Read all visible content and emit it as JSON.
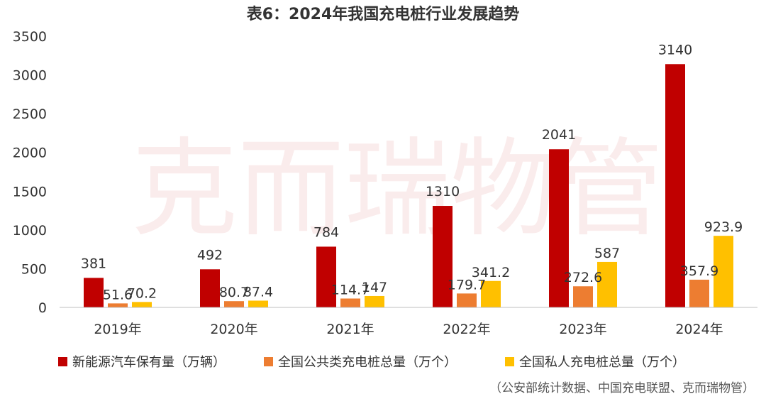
{
  "watermark": "克而瑞物管",
  "source": "（公安部统计数据、中国充电联盟、克而瑞物管）",
  "chart_data": {
    "type": "bar",
    "title": "表6：2024年我国充电桩行业发展趋势",
    "categories": [
      "2019年",
      "2020年",
      "2021年",
      "2022年",
      "2023年",
      "2024年"
    ],
    "series": [
      {
        "name": "新能源汽车保有量（万辆）",
        "color": "#c00000",
        "values": [
          381,
          492,
          784,
          1310,
          2041,
          3140
        ],
        "labels": [
          "381",
          "492",
          "784",
          "1310",
          "2041",
          "3140"
        ]
      },
      {
        "name": "全国公共类充电桩总量（万个）",
        "color": "#ed7d31",
        "values": [
          51.6,
          80.7,
          114.7,
          179.7,
          272.6,
          357.9
        ],
        "labels": [
          "51.6",
          "80.7",
          "114.7",
          "179.7",
          "272.6",
          "357.9"
        ]
      },
      {
        "name": "全国私人充电桩总量（万个）",
        "color": "#ffc000",
        "values": [
          70.2,
          87.4,
          147,
          341.2,
          587,
          923.9
        ],
        "labels": [
          "70.2",
          "87.4",
          "147",
          "341.2",
          "587",
          "923.9"
        ]
      }
    ],
    "yticks": [
      "0",
      "500",
      "1000",
      "1500",
      "2000",
      "2500",
      "3000",
      "3500"
    ],
    "ylim": [
      0,
      3500
    ],
    "grid": false,
    "legend_position": "bottom"
  }
}
